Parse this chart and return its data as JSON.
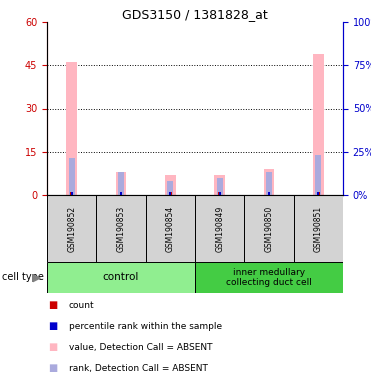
{
  "title": "GDS3150 / 1381828_at",
  "samples": [
    "GSM190852",
    "GSM190853",
    "GSM190854",
    "GSM190849",
    "GSM190850",
    "GSM190851"
  ],
  "group_control_label": "control",
  "group_inner_label": "inner medullary\ncollecting duct cell",
  "group_control_color": "#90ee90",
  "group_inner_color": "#44cc44",
  "pink_values": [
    46,
    8,
    7,
    7,
    9,
    49
  ],
  "lavender_values": [
    13,
    8,
    5,
    6,
    8,
    14
  ],
  "count_values": [
    1,
    1,
    1,
    1,
    1,
    1
  ],
  "percentile_values": [
    1,
    1,
    1,
    1,
    1,
    1
  ],
  "left_ylim": [
    0,
    60
  ],
  "left_yticks": [
    0,
    15,
    30,
    45,
    60
  ],
  "right_ylim": [
    0,
    100
  ],
  "right_yticks": [
    0,
    25,
    50,
    75,
    100
  ],
  "left_tick_color": "#cc0000",
  "right_tick_color": "#0000cc",
  "count_color": "#cc0000",
  "percentile_color": "#0000cc",
  "pink_color": "#ffb6c1",
  "lavender_color": "#aaaadd",
  "sample_box_color": "#d3d3d3",
  "pink_bar_width": 0.22,
  "lavender_bar_width": 0.12,
  "count_bar_width": 0.06,
  "percentile_bar_width": 0.04,
  "legend_items": [
    {
      "color": "#cc0000",
      "label": "count"
    },
    {
      "color": "#0000cc",
      "label": "percentile rank within the sample"
    },
    {
      "color": "#ffb6c1",
      "label": "value, Detection Call = ABSENT"
    },
    {
      "color": "#aaaadd",
      "label": "rank, Detection Call = ABSENT"
    }
  ]
}
